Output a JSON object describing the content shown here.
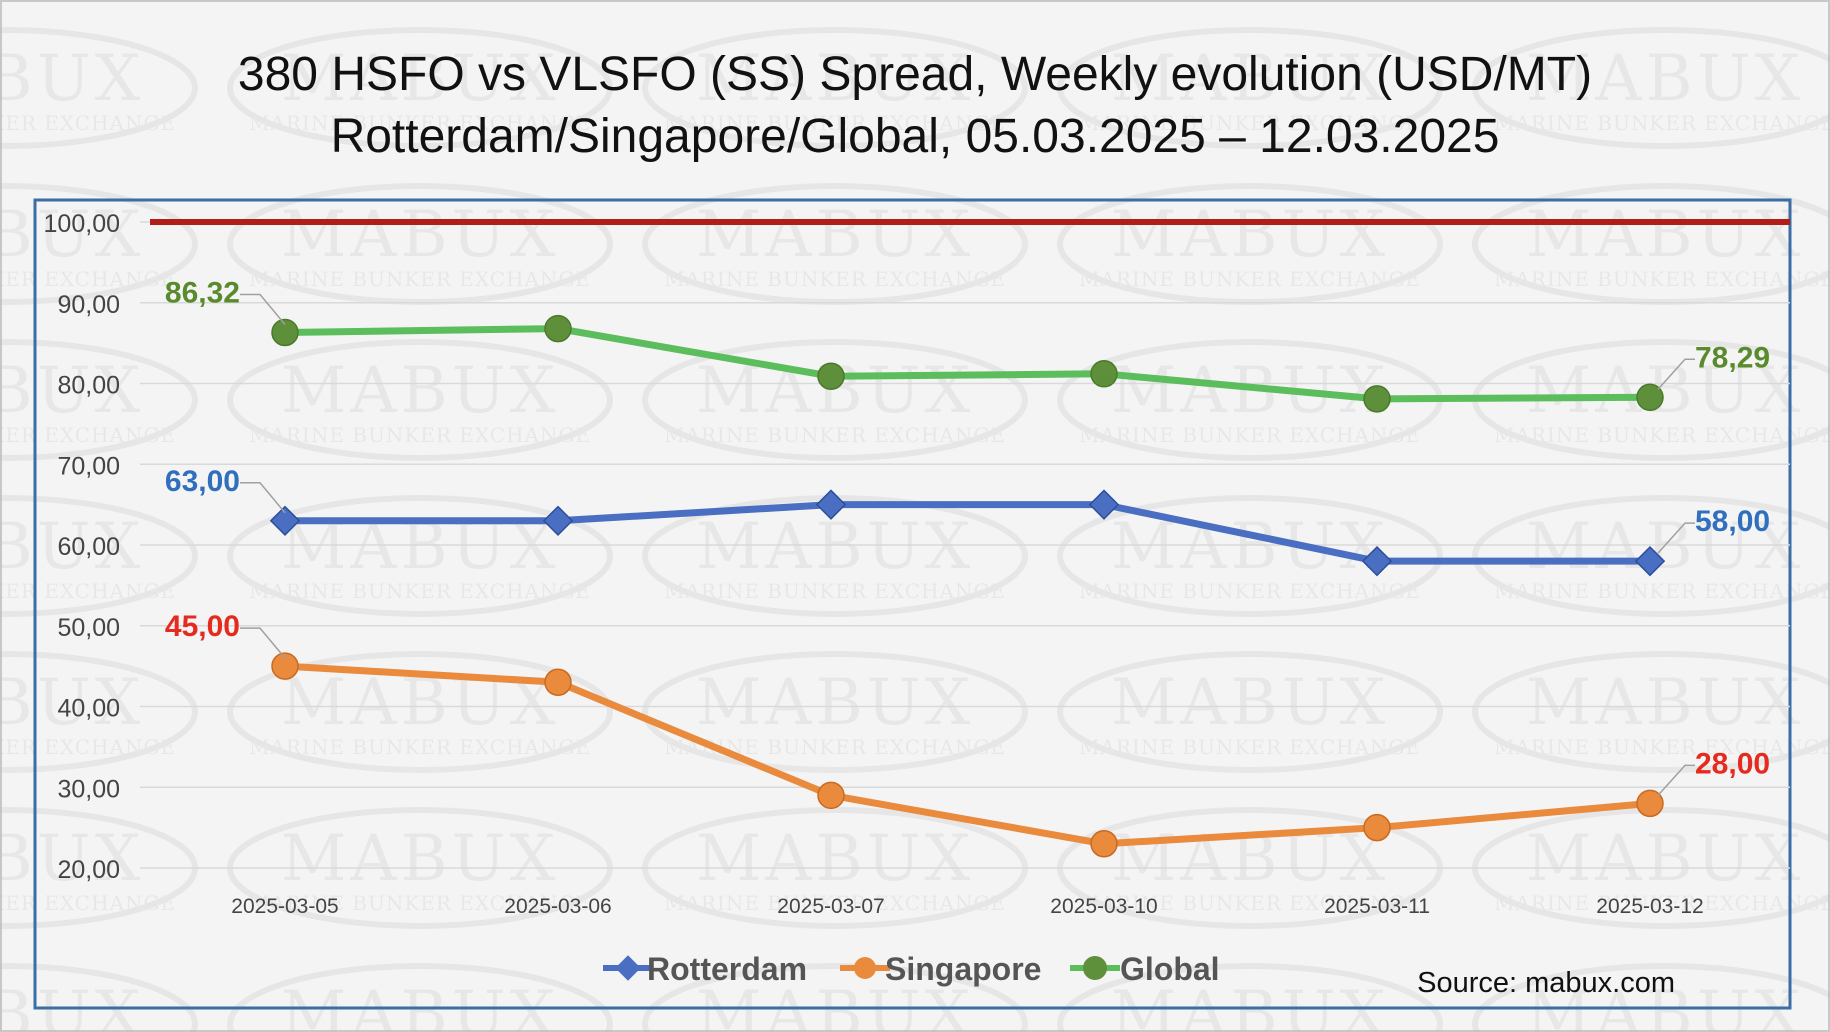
{
  "title": {
    "line1": "380 HSFO vs VLSFO (SS) Spread, Weekly evolution (USD/MT)",
    "line2": "Rotterdam/Singapore/Global, 05.03.2025 – 12.03.2025"
  },
  "source": "Source: mabux.com",
  "watermark": {
    "brand": "MABUX",
    "tagline": "MARINE BUNKER EXCHANGE"
  },
  "colors": {
    "background": "#f4f4f4",
    "plot_border": "#3a6ea5",
    "grid": "#d9d9d9",
    "threshold": "#b01e17",
    "rotterdam": "#4a6fc2",
    "singapore": "#e98a3d",
    "global": "#5cbd5c",
    "global_marker": "#5e8f3a",
    "rotterdam_label": "#2f6fbd",
    "singapore_label": "#e52b1f",
    "global_label": "#5a8a2e"
  },
  "chart_data": {
    "type": "line",
    "categories": [
      "2025-03-05",
      "2025-03-06",
      "2025-03-07",
      "2025-03-10",
      "2025-03-11",
      "2025-03-12"
    ],
    "ylim": [
      20,
      100
    ],
    "yticks": [
      "20,00",
      "30,00",
      "40,00",
      "50,00",
      "60,00",
      "70,00",
      "80,00",
      "90,00",
      "100,00"
    ],
    "ytick_values": [
      20,
      30,
      40,
      50,
      60,
      70,
      80,
      90,
      100
    ],
    "threshold": 100,
    "series": [
      {
        "name": "Rotterdam",
        "values": [
          63.0,
          63.0,
          65.0,
          65.0,
          58.0,
          58.0
        ],
        "marker": "diamond",
        "first_label": "63,00",
        "last_label": "58,00"
      },
      {
        "name": "Singapore",
        "values": [
          45.0,
          43.0,
          29.0,
          23.0,
          25.0,
          28.0
        ],
        "marker": "circle",
        "first_label": "45,00",
        "last_label": "28,00"
      },
      {
        "name": "Global",
        "values": [
          86.32,
          86.8,
          80.9,
          81.2,
          78.1,
          78.29
        ],
        "marker": "circle",
        "first_label": "86,32",
        "last_label": "78,29"
      }
    ],
    "legend": [
      "Rotterdam",
      "Singapore",
      "Global"
    ],
    "legend_position": "bottom-center"
  }
}
